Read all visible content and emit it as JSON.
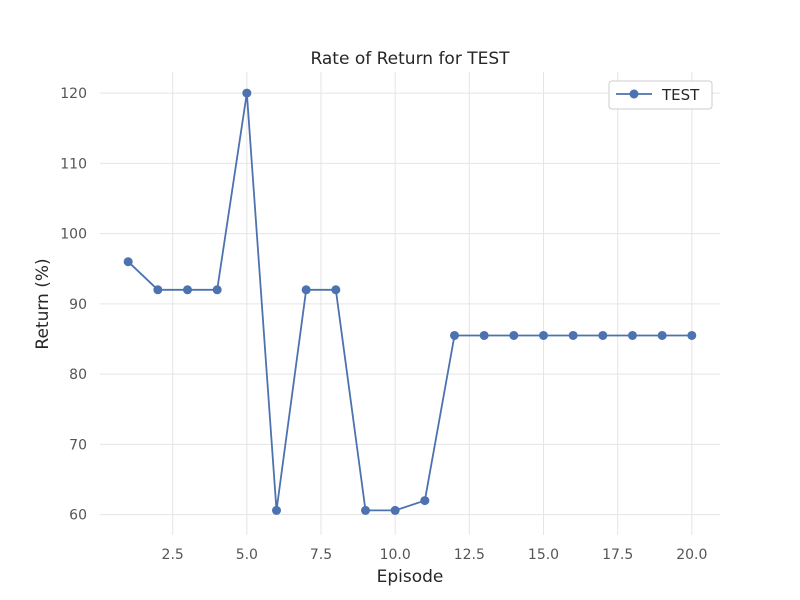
{
  "chart_data": {
    "type": "line",
    "title": "Rate of Return for TEST",
    "xlabel": "Episode",
    "ylabel": "Return (%)",
    "xlim": [
      0.05,
      20.95
    ],
    "ylim": [
      57.1,
      123.0
    ],
    "xticks": [
      2.5,
      5.0,
      7.5,
      10.0,
      12.5,
      15.0,
      17.5,
      20.0
    ],
    "xtick_labels": [
      "2.5",
      "5.0",
      "7.5",
      "10.0",
      "12.5",
      "15.0",
      "17.5",
      "20.0"
    ],
    "yticks": [
      60,
      70,
      80,
      90,
      100,
      110,
      120
    ],
    "ytick_labels": [
      "60",
      "70",
      "80",
      "90",
      "100",
      "110",
      "120"
    ],
    "grid": true,
    "legend_position": "top-right",
    "x": [
      1,
      2,
      3,
      4,
      5,
      6,
      7,
      8,
      9,
      10,
      11,
      12,
      13,
      14,
      15,
      16,
      17,
      18,
      19,
      20
    ],
    "series": [
      {
        "name": "TEST",
        "color": "#4c72b0",
        "marker": "circle",
        "values": [
          96.0,
          92.0,
          92.0,
          92.0,
          120.0,
          60.6,
          92.0,
          92.0,
          60.6,
          60.6,
          62.0,
          85.5,
          85.5,
          85.5,
          85.5,
          85.5,
          85.5,
          85.5,
          85.5,
          85.5
        ]
      }
    ]
  }
}
